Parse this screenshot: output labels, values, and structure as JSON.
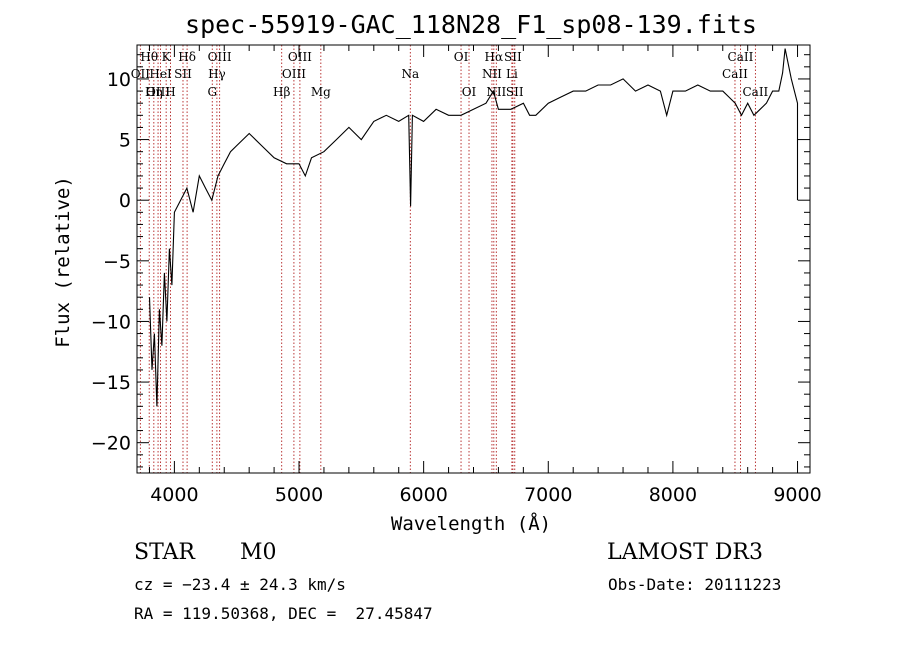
{
  "chart_data": {
    "type": "line",
    "title": "spec-55919-GAC_118N28_F1_sp08-139.fits",
    "xlabel": "Wavelength (Å)",
    "ylabel": "Flux (relative)",
    "xlim": [
      3700,
      9100
    ],
    "ylim": [
      -22.5,
      12.8
    ],
    "x_ticks": [
      4000,
      5000,
      6000,
      7000,
      8000,
      9000
    ],
    "y_ticks": [
      -20,
      -15,
      -10,
      -5,
      0,
      5,
      10
    ],
    "grid": false,
    "series": [
      {
        "name": "spectrum",
        "x": [
          3800,
          3820,
          3840,
          3860,
          3880,
          3900,
          3920,
          3940,
          3960,
          3980,
          4000,
          4050,
          4100,
          4150,
          4200,
          4250,
          4300,
          4350,
          4400,
          4450,
          4500,
          4600,
          4700,
          4800,
          4900,
          5000,
          5050,
          5100,
          5200,
          5300,
          5400,
          5500,
          5600,
          5700,
          5800,
          5880,
          5895,
          5910,
          6000,
          6100,
          6200,
          6300,
          6400,
          6500,
          6560,
          6600,
          6700,
          6800,
          6850,
          6900,
          7000,
          7100,
          7200,
          7300,
          7400,
          7500,
          7600,
          7700,
          7800,
          7900,
          7950,
          8000,
          8100,
          8200,
          8300,
          8400,
          8450,
          8500,
          8550,
          8600,
          8650,
          8700,
          8750,
          8800,
          8850,
          8880,
          8900,
          8950,
          9000,
          9000
        ],
        "y": [
          -8,
          -14,
          -11,
          -17,
          -9,
          -12,
          -6,
          -10,
          -4,
          -7,
          -1,
          0,
          1,
          -1,
          2,
          1,
          0,
          2,
          3,
          4,
          4.5,
          5.5,
          4.5,
          3.5,
          3,
          3,
          2,
          3.5,
          4,
          5,
          6,
          5,
          6.5,
          7,
          6.5,
          7,
          -0.5,
          7,
          6.5,
          7.5,
          7,
          7,
          7.5,
          8,
          9,
          7.5,
          7.5,
          8,
          7,
          7,
          8,
          8.5,
          9,
          9,
          9.5,
          9.5,
          10,
          9,
          9.5,
          9,
          7,
          9,
          9,
          9.5,
          9,
          9,
          8.5,
          8,
          7,
          8,
          7,
          7.5,
          8,
          9,
          9,
          10.5,
          12.5,
          10,
          8,
          0
        ]
      }
    ],
    "line_labels": [
      {
        "name": "Hθ",
        "x": 3798,
        "row": 1
      },
      {
        "name": "OII",
        "x": 3727,
        "row": 2
      },
      {
        "name": "OIII",
        "x": 3869,
        "row": 3
      },
      {
        "name": "K",
        "x": 3934,
        "row": 1
      },
      {
        "name": "HeI",
        "x": 3889,
        "row": 2
      },
      {
        "name": "Hη",
        "x": 3835,
        "row": 3
      },
      {
        "name": "H",
        "x": 3969,
        "row": 3
      },
      {
        "name": "SII",
        "x": 4069,
        "row": 2
      },
      {
        "name": "Hδ",
        "x": 4102,
        "row": 1
      },
      {
        "name": "OIII",
        "x": 4363,
        "row": 1
      },
      {
        "name": "Hγ",
        "x": 4341,
        "row": 2
      },
      {
        "name": "G",
        "x": 4304,
        "row": 3
      },
      {
        "name": "OIII",
        "x": 5007,
        "row": 1
      },
      {
        "name": "OIII",
        "x": 4959,
        "row": 2
      },
      {
        "name": "Hβ",
        "x": 4861,
        "row": 3
      },
      {
        "name": "Mg",
        "x": 5175,
        "row": 3
      },
      {
        "name": "Na",
        "x": 5893,
        "row": 2
      },
      {
        "name": "OI",
        "x": 6300,
        "row": 1
      },
      {
        "name": "OI",
        "x": 6364,
        "row": 3
      },
      {
        "name": "Hα",
        "x": 6563,
        "row": 1
      },
      {
        "name": "NII",
        "x": 6548,
        "row": 2
      },
      {
        "name": "NII",
        "x": 6583,
        "row": 3
      },
      {
        "name": "SII",
        "x": 6716,
        "row": 1
      },
      {
        "name": "Li",
        "x": 6708,
        "row": 2
      },
      {
        "name": "SII",
        "x": 6731,
        "row": 3
      },
      {
        "name": "CaII",
        "x": 8542,
        "row": 1
      },
      {
        "name": "CaII",
        "x": 8498,
        "row": 2
      },
      {
        "name": "CaII",
        "x": 8662,
        "row": 3
      }
    ]
  },
  "info": {
    "class_label": "STAR",
    "subclass": "M0",
    "survey": "LAMOST DR3",
    "cz_text": "cz = −23.4 ± 24.3 km/s",
    "obs_date": "Obs-Date: 20111223",
    "coords": "RA = 119.50368, DEC =  27.45847"
  },
  "colors": {
    "line_marker": "#b22222",
    "spectrum": "#000000",
    "axes": "#000000"
  }
}
